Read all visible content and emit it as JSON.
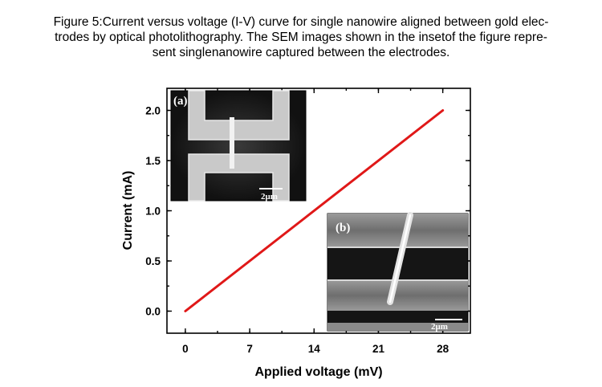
{
  "caption": {
    "lines": [
      "Figure 5:Current versus voltage (I-V) curve for single nanowire aligned between gold elec-",
      "trodes by optical photolithography. The SEM images shown in the insetof the figure repre-",
      "sent singlenanowire captured between the electrodes."
    ]
  },
  "chart_data": {
    "type": "line",
    "xlabel": "Applied voltage (mV)",
    "ylabel": "Current (mA)",
    "xlim": [
      -2,
      31
    ],
    "ylim": [
      -0.22,
      2.22
    ],
    "xticks": [
      0,
      7,
      14,
      21,
      28
    ],
    "yticks": [
      0.0,
      0.5,
      1.0,
      1.5,
      2.0
    ],
    "xtick_labels": [
      "0",
      "7",
      "14",
      "21",
      "28"
    ],
    "ytick_labels": [
      "0.0",
      "0.5",
      "1.0",
      "1.5",
      "2.0"
    ],
    "grid": false,
    "series": [
      {
        "color": "#e01818",
        "x": [
          0,
          28
        ],
        "y": [
          0.0,
          2.0
        ]
      }
    ]
  },
  "insets": {
    "a": {
      "label": "(a)",
      "scale_bar": "2μm"
    },
    "b": {
      "label": "(b)",
      "scale_bar": "2μm"
    }
  }
}
